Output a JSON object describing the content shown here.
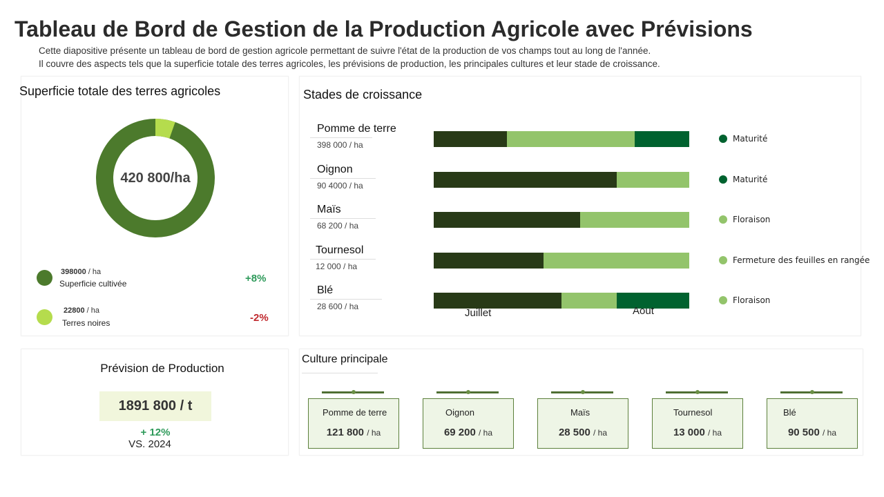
{
  "title": "Tableau de Bord de Gestion de la Production Agricole avec Prévisions",
  "subtitle_lines": [
    "Cette diapositive présente un tableau de bord de gestion agricole permettant de suivre l'état de la production de vos champs tout au long de l'année.",
    "Il couvre des aspects tels que la superficie totale des terres agricoles, les prévisions de production, les principales cultures et leur stade de croissance."
  ],
  "colors": {
    "dark": "#283a17",
    "light": "#93c46b",
    "mature": "#00622f",
    "donut_main": "#4c7a2c",
    "donut_light": "#b5dc4d",
    "positive": "#2e9a5a",
    "negative": "#c0282d"
  },
  "superficie": {
    "title": "Superficie totale des terres agricoles",
    "total": "420 800/ha",
    "items": [
      {
        "value": "398000",
        "unit": "/ ha",
        "label": "Superficie cultivée",
        "change": "+8%",
        "amount": 398000
      },
      {
        "value": "22800",
        "unit": "/ ha",
        "label": "Terres noires",
        "change": "-2%",
        "amount": 22800
      }
    ]
  },
  "stades": {
    "title": "Stades de croissance",
    "axis": [
      "Juillet",
      "Aout"
    ],
    "crops": [
      {
        "name": "Pomme de terre",
        "value": "398 000 / ha",
        "stage": "Maturité",
        "stage_color": "#00622f",
        "segments": [
          0.286,
          0.5,
          0.214
        ]
      },
      {
        "name": "Oignon",
        "value": "90 4000 / ha",
        "stage": "Maturité",
        "stage_color": "#00622f",
        "segments": [
          0.716,
          0.284,
          0
        ]
      },
      {
        "name": "Maïs",
        "value": "68 200 / ha",
        "stage": "Floraison",
        "stage_color": "#93c46b",
        "segments": [
          0.573,
          0.427,
          0
        ]
      },
      {
        "name": "Tournesol",
        "value": "12 000 / ha",
        "stage": "Fermeture des feuilles en rangée",
        "stage_color": "#93c46b",
        "segments": [
          0.43,
          0.57,
          0
        ]
      },
      {
        "name": "Blé",
        "value": "28 600 / ha",
        "stage": "Floraison",
        "stage_color": "#93c46b",
        "segments": [
          0.5,
          0.216,
          0.284
        ]
      }
    ]
  },
  "prevision": {
    "title": "Prévision de Production",
    "value": "1891 800 / t",
    "change": "+ 12%",
    "compare": "VS. 2024"
  },
  "culture": {
    "title": "Culture principale",
    "cards": [
      {
        "name": "Pomme de terre",
        "value": "121 800",
        "unit": "/ ha"
      },
      {
        "name": "Oignon",
        "value": "69 200",
        "unit": "/ ha"
      },
      {
        "name": "Maïs",
        "value": "28 500",
        "unit": "/ ha"
      },
      {
        "name": "Tournesol",
        "value": "13 000",
        "unit": "/ ha"
      },
      {
        "name": "Blé",
        "value": "90 500",
        "unit": "/ ha"
      }
    ]
  }
}
